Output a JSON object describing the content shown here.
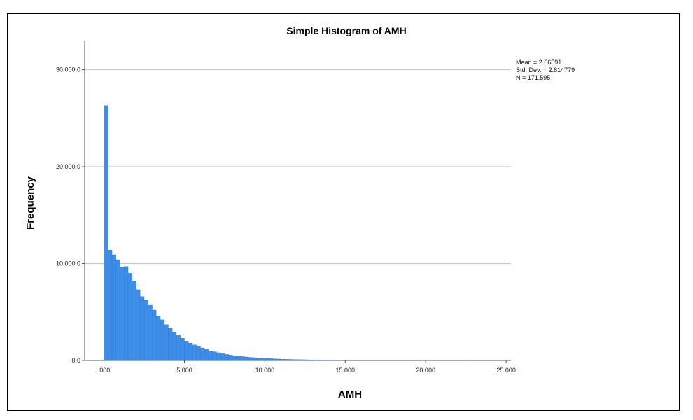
{
  "chart_data": {
    "type": "bar",
    "title": "Simple Histogram of AMH",
    "xlabel": "AMH",
    "ylabel": "Frequency",
    "xlim": [
      -1.2,
      25.3
    ],
    "ylim": [
      0,
      33000
    ],
    "x_ticks": [
      {
        "value": 0,
        "label": ".000"
      },
      {
        "value": 5,
        "label": "5.000"
      },
      {
        "value": 10,
        "label": "10.000"
      },
      {
        "value": 15,
        "label": "15.000"
      },
      {
        "value": 20,
        "label": "20.000"
      },
      {
        "value": 25,
        "label": "25.000"
      }
    ],
    "y_ticks": [
      {
        "value": 0,
        "label": "0.0"
      },
      {
        "value": 10000,
        "label": "10,000.0"
      },
      {
        "value": 20000,
        "label": "20,000.0"
      },
      {
        "value": 30000,
        "label": "30,000.0"
      }
    ],
    "grid": "horizontal",
    "bar_color": "#3d8ee8",
    "bar_edge_color": "#2a6fc0",
    "bin_start": 0,
    "bin_width": 0.25,
    "values": [
      26300,
      11400,
      10900,
      10400,
      9600,
      9700,
      9000,
      8200,
      7300,
      6600,
      6200,
      5700,
      5200,
      4600,
      4200,
      3700,
      3300,
      2900,
      2600,
      2300,
      2000,
      1800,
      1600,
      1450,
      1300,
      1150,
      1000,
      900,
      800,
      700,
      620,
      560,
      500,
      450,
      400,
      360,
      320,
      290,
      260,
      230,
      210,
      190,
      170,
      150,
      135,
      120,
      110,
      100,
      90,
      80,
      72,
      65,
      58,
      52,
      47,
      42,
      38,
      34,
      31,
      28,
      25,
      22,
      20,
      18,
      16,
      15,
      13,
      12,
      11,
      10,
      9,
      8,
      8,
      7,
      7,
      6,
      6,
      5,
      5,
      5,
      4,
      4,
      4,
      3,
      3,
      3,
      3,
      2,
      2,
      2,
      60,
      2,
      2,
      1,
      1,
      1,
      1
    ],
    "annotations": [
      "Mean = 2.66591",
      "Std. Dev. = 2.814779",
      "N = 171,595"
    ],
    "annotation_position": "top-right"
  }
}
